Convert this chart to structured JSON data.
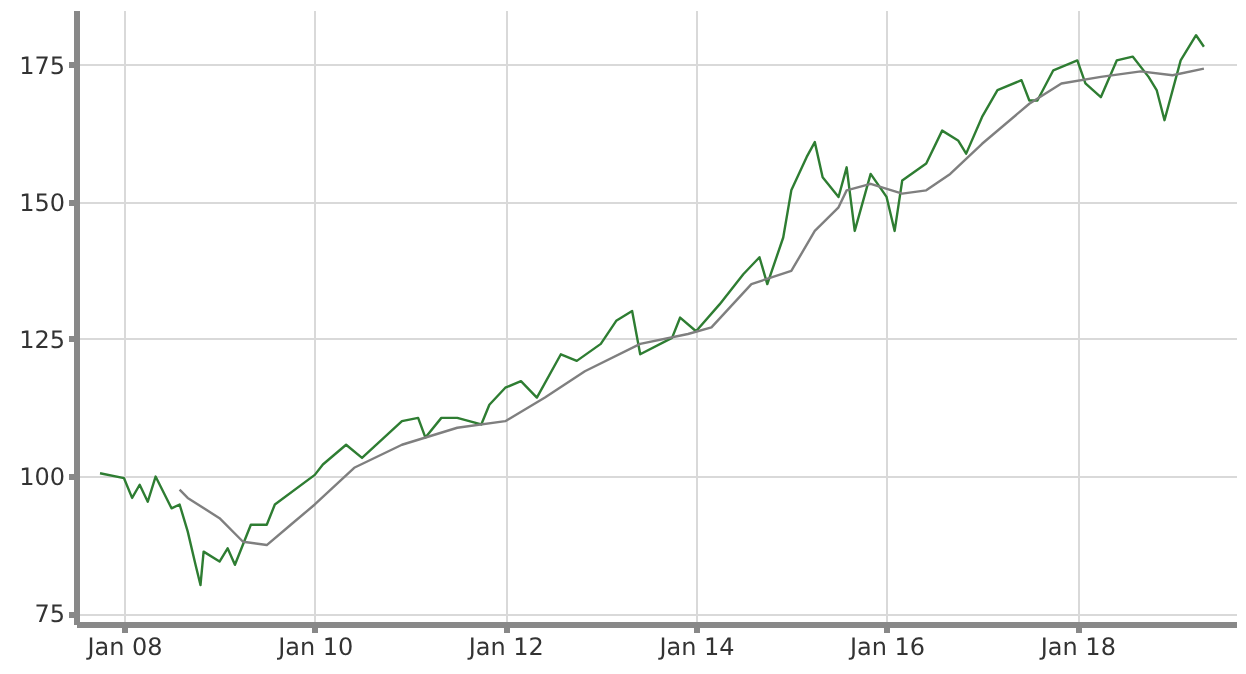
{
  "chart_data": {
    "type": "line",
    "xlim": [
      "2007-07",
      "2019-09"
    ],
    "ylim": [
      73,
      185
    ],
    "xticks": [
      {
        "value": "2008-01",
        "label": "Jan 08"
      },
      {
        "value": "2010-01",
        "label": "Jan 10"
      },
      {
        "value": "2012-01",
        "label": "Jan 12"
      },
      {
        "value": "2014-01",
        "label": "Jan 14"
      },
      {
        "value": "2016-01",
        "label": "Jan 16"
      },
      {
        "value": "2018-01",
        "label": "Jan 18"
      }
    ],
    "yticks": [
      75,
      100,
      125,
      150,
      175
    ],
    "grid": true,
    "line_style": "solid",
    "marker": "none",
    "series": [
      {
        "color": "#2e7d32",
        "x": [
          "2007-10",
          "2008-01",
          "2008-02",
          "2008-03",
          "2008-04",
          "2008-05",
          "2008-07",
          "2008-08",
          "2008-09",
          "2008-10",
          "2008-10-20",
          "2008-11",
          "2009-01",
          "2009-02",
          "2009-03",
          "2009-05",
          "2009-07",
          "2009-08",
          "2010-01",
          "2010-02",
          "2010-05",
          "2010-07",
          "2010-12",
          "2011-02",
          "2011-03",
          "2011-05",
          "2011-07",
          "2011-10",
          "2011-11",
          "2012-01",
          "2012-03",
          "2012-05",
          "2012-08",
          "2012-10",
          "2013-01",
          "2013-03",
          "2013-05",
          "2013-06",
          "2013-10",
          "2013-11",
          "2014-01",
          "2014-04",
          "2014-07",
          "2014-09",
          "2014-10",
          "2014-12",
          "2015-01",
          "2015-03",
          "2015-04",
          "2015-05",
          "2015-07",
          "2015-08",
          "2015-09",
          "2015-11",
          "2016-01",
          "2016-02",
          "2016-03",
          "2016-06",
          "2016-08",
          "2016-10",
          "2016-11",
          "2017-01",
          "2017-03",
          "2017-06",
          "2017-07",
          "2017-08",
          "2017-10",
          "2018-01",
          "2018-02",
          "2018-04",
          "2018-06",
          "2018-08",
          "2018-10",
          "2018-11",
          "2018-12",
          "2019-02",
          "2019-04",
          "2019-05"
        ],
        "values": [
          100.5,
          99.6,
          96,
          98.4,
          95.3,
          99.9,
          94.1,
          94.8,
          89.9,
          83.8,
          80.1,
          86.2,
          84.4,
          86.8,
          83.8,
          91.1,
          91.1,
          94.8,
          100.2,
          102.1,
          105.7,
          103.3,
          110,
          110.6,
          107,
          110.6,
          110.6,
          109.4,
          113,
          116.1,
          117.3,
          114.3,
          122.2,
          121,
          124.1,
          128.3,
          130.1,
          122.2,
          125.2,
          128.9,
          126.4,
          131.3,
          136.8,
          139.9,
          135,
          143.5,
          152.1,
          158.2,
          160.9,
          154.5,
          150.9,
          156.3,
          144.7,
          155.1,
          150.9,
          144.7,
          153.9,
          157,
          163,
          161.2,
          158.8,
          165.5,
          170.4,
          172.2,
          168.5,
          168.5,
          174,
          175.8,
          171.6,
          169.1,
          175.8,
          176.5,
          172.8,
          170.4,
          164.9,
          175.8,
          180.4,
          178.3
        ]
      },
      {
        "color": "#7f7f7f",
        "x": [
          "2008-08",
          "2008-09",
          "2009-01",
          "2009-04",
          "2009-07",
          "2009-10",
          "2010-01",
          "2010-06",
          "2010-12",
          "2011-07",
          "2012-01",
          "2012-06",
          "2012-11",
          "2013-06",
          "2013-12",
          "2014-03",
          "2014-08",
          "2015-01",
          "2015-04",
          "2015-07",
          "2015-08",
          "2015-11",
          "2016-03",
          "2016-06",
          "2016-09",
          "2017-01",
          "2017-07",
          "2017-11",
          "2018-04",
          "2018-09",
          "2019-01",
          "2019-05"
        ],
        "values": [
          97.5,
          96,
          92.3,
          88,
          87.4,
          91.1,
          94.8,
          101.5,
          105.7,
          108.8,
          110,
          114.3,
          119.1,
          124.1,
          125.9,
          127.1,
          135,
          137.4,
          144.7,
          149,
          152.1,
          153.3,
          151.5,
          152.1,
          155.1,
          160.6,
          167.9,
          171.6,
          172.8,
          173.8,
          173.1,
          174.3
        ]
      }
    ]
  }
}
